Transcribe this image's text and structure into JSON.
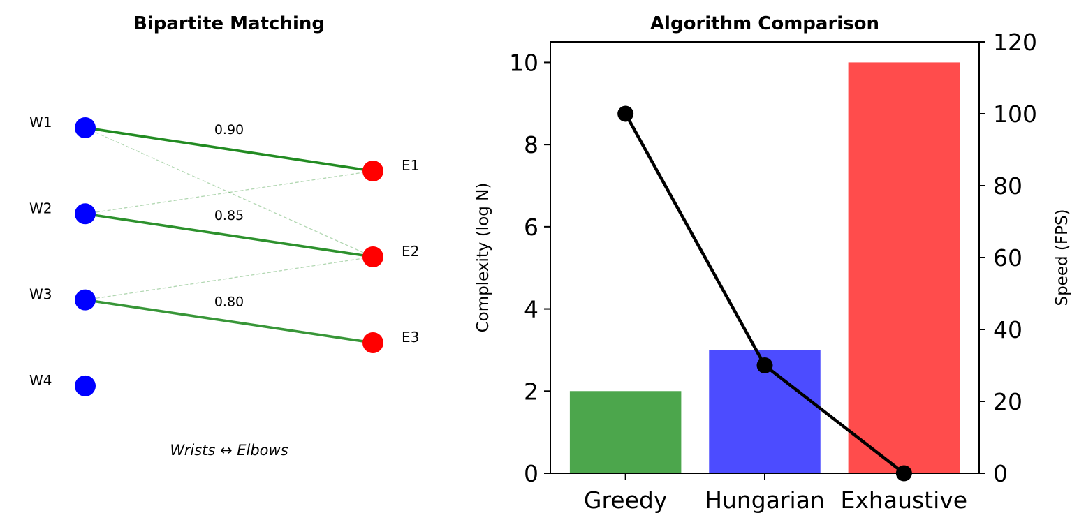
{
  "figure": {
    "left_panel": {
      "title": "Bipartite Matching",
      "caption": "Wrists ↔ Elbows",
      "left_nodes": [
        "W1",
        "W2",
        "W3",
        "W4"
      ],
      "right_nodes": [
        "E1",
        "E2",
        "E3"
      ],
      "left_color": "#0000ff",
      "right_color": "#ff0000",
      "edge_color": "#228b22",
      "matches": [
        {
          "from": "W1",
          "to": "E1",
          "weight": "0.90"
        },
        {
          "from": "W2",
          "to": "E2",
          "weight": "0.85"
        },
        {
          "from": "W3",
          "to": "E3",
          "weight": "0.80"
        }
      ],
      "candidate_edges": [
        {
          "from": "W1",
          "to": "E2"
        },
        {
          "from": "W2",
          "to": "E1"
        },
        {
          "from": "W3",
          "to": "E2"
        }
      ]
    }
  },
  "chart_data": {
    "type": "bar",
    "title": "Algorithm Comparison",
    "categories": [
      "Greedy",
      "Hungarian",
      "Exhaustive"
    ],
    "bar_colors": [
      "#4ca64c",
      "#4c4cff",
      "#ff4c4c"
    ],
    "ylabel": "Complexity (log N)",
    "ylim": [
      0,
      10.5
    ],
    "yticks": [
      0,
      2,
      4,
      6,
      8,
      10
    ],
    "series": [
      {
        "axis": "left",
        "kind": "bar",
        "values": [
          2,
          3,
          10
        ]
      },
      {
        "axis": "right",
        "kind": "line",
        "color": "#000000",
        "values": [
          100,
          30,
          0
        ]
      }
    ],
    "y2label": "Speed (FPS)",
    "y2lim": [
      0,
      120
    ],
    "y2ticks": [
      0,
      20,
      40,
      60,
      80,
      100,
      120
    ],
    "grid": false
  }
}
